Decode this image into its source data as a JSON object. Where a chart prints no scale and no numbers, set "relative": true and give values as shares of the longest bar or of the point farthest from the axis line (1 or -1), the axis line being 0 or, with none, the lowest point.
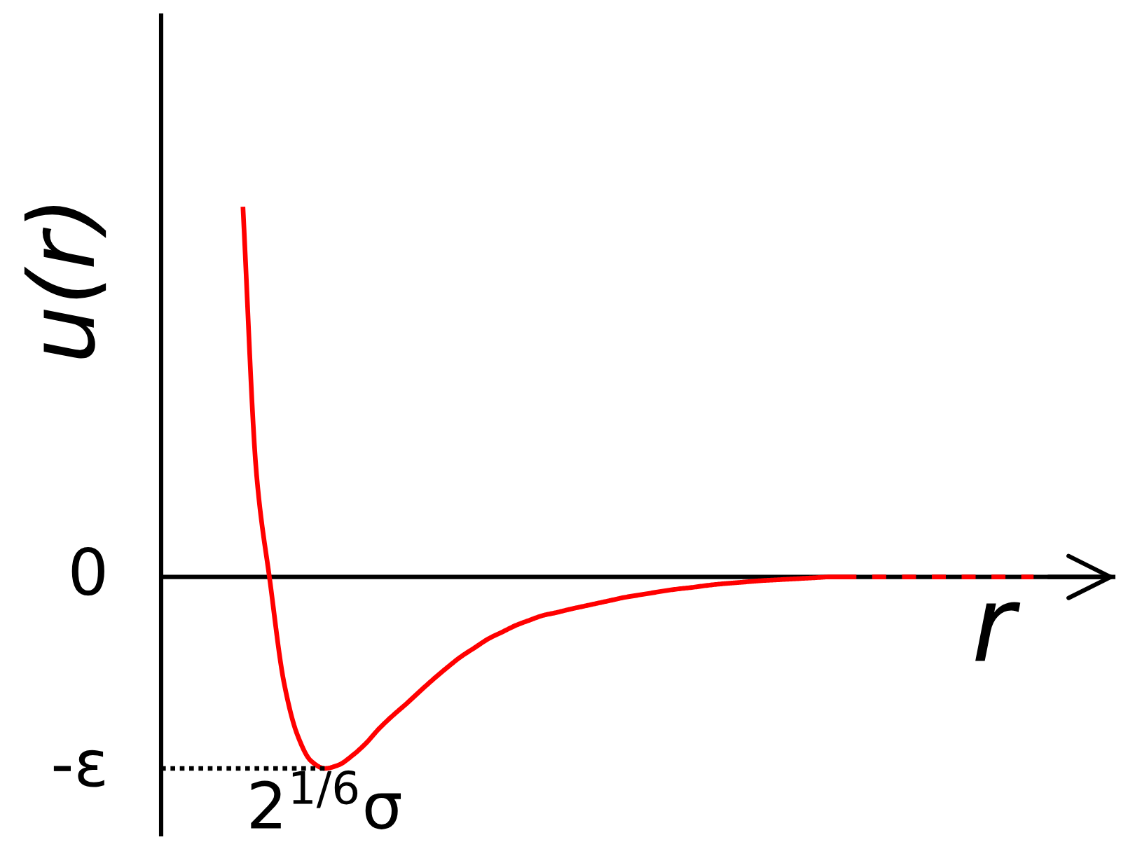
{
  "chart_data": {
    "type": "line",
    "relative": true,
    "xlabel": "r",
    "ylabel": "u(r)",
    "categories": [
      null,
      null,
      null,
      null,
      null,
      null,
      null,
      null,
      null,
      null,
      null,
      null,
      null,
      null,
      null,
      null,
      null,
      null,
      null,
      null,
      null,
      null,
      null,
      null,
      null,
      null,
      null,
      null,
      null,
      null,
      null,
      null,
      null,
      null,
      null,
      null,
      null,
      null,
      null,
      null,
      null,
      null,
      null,
      null,
      null,
      null,
      null,
      null,
      null,
      null,
      null,
      null,
      null,
      null,
      null,
      null,
      null,
      null,
      null,
      null,
      null,
      null,
      null,
      null,
      null,
      null,
      null,
      null,
      null,
      null,
      null
    ],
    "series": [
      {
        "color": "#ff0000",
        "line_style": "solid",
        "values": [
          null,
          null,
          null,
          null,
          null,
          null,
          1,
          0.276,
          -0.016,
          -0.283,
          -0.427,
          -0.497,
          -0.517,
          -0.508,
          -0.483,
          -0.45,
          -0.409,
          -0.374,
          -0.342,
          -0.308,
          -0.275,
          -0.244,
          -0.215,
          -0.191,
          -0.167,
          -0.149,
          -0.131,
          -0.117,
          -0.104,
          -0.096,
          -0.087,
          -0.079,
          -0.071,
          -0.063,
          -0.055,
          -0.049,
          -0.043,
          -0.037,
          -0.032,
          -0.028,
          -0.023,
          -0.019,
          -0.016,
          -0.013,
          -0.01,
          -0.008,
          -0.006,
          -0.004,
          -0.002,
          0,
          0,
          0,
          null,
          null,
          null,
          null,
          null,
          null,
          null,
          null,
          null,
          null,
          null,
          null,
          null,
          null,
          null,
          null,
          null,
          null,
          null
        ]
      },
      {
        "color": "#ff0000",
        "line_style": "dashed",
        "values": [
          null,
          null,
          null,
          null,
          null,
          null,
          null,
          null,
          null,
          null,
          null,
          null,
          null,
          null,
          null,
          null,
          null,
          null,
          null,
          null,
          null,
          null,
          null,
          null,
          null,
          null,
          null,
          null,
          null,
          null,
          null,
          null,
          null,
          null,
          null,
          null,
          null,
          null,
          null,
          null,
          null,
          null,
          null,
          null,
          null,
          null,
          null,
          null,
          null,
          null,
          null,
          0,
          0,
          0,
          0,
          0,
          0,
          0,
          0,
          0,
          0,
          0,
          0,
          0,
          0,
          null,
          null,
          null,
          null,
          null,
          null
        ]
      },
      {
        "color": "#000000",
        "line_style": "dotted",
        "values": [
          -0.517,
          -0.517,
          -0.517,
          -0.517,
          -0.517,
          -0.517,
          -0.517,
          -0.517,
          -0.517,
          -0.517,
          -0.517,
          -0.517,
          -0.517,
          null,
          null,
          null,
          null,
          null,
          null,
          null,
          null,
          null,
          null,
          null,
          null,
          null,
          null,
          null,
          null,
          null,
          null,
          null,
          null,
          null,
          null,
          null,
          null,
          null,
          null,
          null,
          null,
          null,
          null,
          null,
          null,
          null,
          null,
          null,
          null,
          null,
          null,
          null,
          null,
          null,
          null,
          null,
          null,
          null,
          null,
          null,
          null,
          null,
          null,
          null,
          null,
          null,
          null,
          null,
          null,
          null,
          null
        ]
      }
    ],
    "annotations": [
      "0",
      "-ε",
      "2$^{1/6}$σ"
    ]
  }
}
